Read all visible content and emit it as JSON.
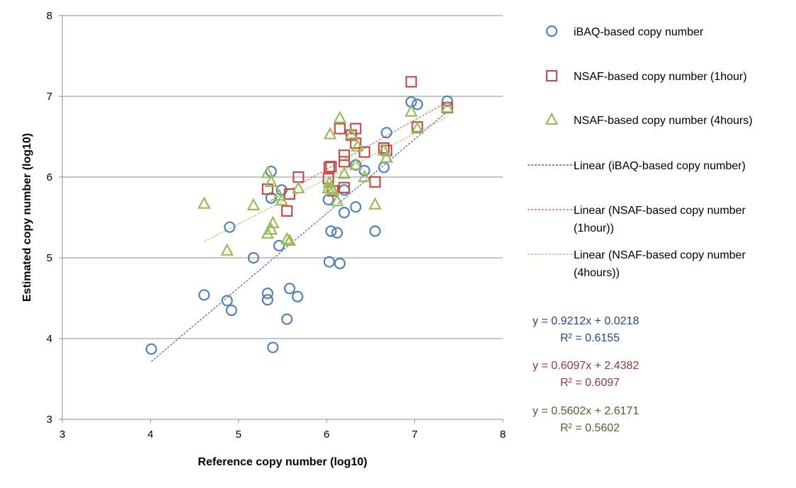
{
  "chart_data": {
    "type": "scatter",
    "xlabel": "Reference copy number (log10)",
    "ylabel": "Estimated copy number (log10)",
    "xlim": [
      3,
      8
    ],
    "ylim": [
      3,
      8
    ],
    "x_ticks": [
      3,
      4,
      5,
      6,
      7,
      8
    ],
    "y_ticks": [
      3,
      4,
      5,
      6,
      7,
      8
    ],
    "grid": "horizontal",
    "legend_position": "right",
    "series": [
      {
        "name": "iBAQ-based copy number",
        "marker": "circle",
        "color": "#4F81BD",
        "points": [
          [
            4.01,
            3.87
          ],
          [
            4.61,
            4.54
          ],
          [
            4.87,
            4.47
          ],
          [
            4.9,
            5.38
          ],
          [
            4.92,
            4.35
          ],
          [
            5.17,
            5.0
          ],
          [
            5.33,
            4.56
          ],
          [
            5.33,
            4.48
          ],
          [
            5.37,
            6.07
          ],
          [
            5.37,
            5.74
          ],
          [
            5.39,
            3.89
          ],
          [
            5.46,
            5.15
          ],
          [
            5.49,
            5.84
          ],
          [
            5.55,
            4.24
          ],
          [
            5.58,
            4.62
          ],
          [
            5.67,
            4.52
          ],
          [
            6.02,
            5.72
          ],
          [
            6.03,
            4.95
          ],
          [
            6.05,
            5.33
          ],
          [
            6.12,
            5.31
          ],
          [
            6.15,
            4.93
          ],
          [
            6.2,
            5.56
          ],
          [
            6.2,
            5.84
          ],
          [
            6.33,
            5.63
          ],
          [
            6.33,
            6.15
          ],
          [
            6.43,
            6.08
          ],
          [
            6.55,
            5.33
          ],
          [
            6.65,
            6.12
          ],
          [
            6.68,
            6.55
          ],
          [
            6.96,
            6.93
          ],
          [
            7.03,
            6.9
          ],
          [
            7.37,
            6.94
          ]
        ]
      },
      {
        "name": "NSAF-based copy number (1hour)",
        "marker": "square",
        "color": "#C0504D",
        "points": [
          [
            5.33,
            5.85
          ],
          [
            5.55,
            5.58
          ],
          [
            5.58,
            5.79
          ],
          [
            5.68,
            6.0
          ],
          [
            6.02,
            5.98
          ],
          [
            6.03,
            6.12
          ],
          [
            6.05,
            6.13
          ],
          [
            6.07,
            5.83
          ],
          [
            6.15,
            6.6
          ],
          [
            6.2,
            6.27
          ],
          [
            6.2,
            6.19
          ],
          [
            6.2,
            5.87
          ],
          [
            6.28,
            6.52
          ],
          [
            6.33,
            6.6
          ],
          [
            6.33,
            6.42
          ],
          [
            6.43,
            6.31
          ],
          [
            6.55,
            5.94
          ],
          [
            6.65,
            6.36
          ],
          [
            6.68,
            6.33
          ],
          [
            6.96,
            7.18
          ],
          [
            7.03,
            6.62
          ],
          [
            7.37,
            6.86
          ]
        ]
      },
      {
        "name": "NSAF-based copy number (4hours)",
        "marker": "triangle",
        "color": "#9BBB59",
        "points": [
          [
            4.61,
            5.67
          ],
          [
            4.87,
            5.09
          ],
          [
            5.17,
            5.65
          ],
          [
            5.33,
            5.3
          ],
          [
            5.33,
            6.05
          ],
          [
            5.37,
            5.94
          ],
          [
            5.37,
            5.35
          ],
          [
            5.39,
            5.43
          ],
          [
            5.46,
            5.77
          ],
          [
            5.49,
            5.71
          ],
          [
            5.55,
            5.23
          ],
          [
            5.58,
            5.21
          ],
          [
            5.68,
            5.86
          ],
          [
            6.02,
            5.86
          ],
          [
            6.03,
            5.93
          ],
          [
            6.04,
            6.53
          ],
          [
            6.05,
            5.86
          ],
          [
            6.07,
            5.84
          ],
          [
            6.12,
            5.7
          ],
          [
            6.15,
            6.73
          ],
          [
            6.2,
            6.04
          ],
          [
            6.28,
            6.53
          ],
          [
            6.33,
            6.15
          ],
          [
            6.35,
            6.38
          ],
          [
            6.43,
            6.0
          ],
          [
            6.55,
            5.66
          ],
          [
            6.65,
            6.33
          ],
          [
            6.68,
            6.24
          ],
          [
            6.96,
            6.81
          ],
          [
            7.03,
            6.6
          ],
          [
            7.37,
            6.86
          ]
        ]
      },
      {
        "name": "Linear (iBAQ-based copy number)",
        "marker": "dashed-line",
        "color": "#1F4E8C",
        "trend": {
          "slope": 0.9212,
          "intercept": 0.0218,
          "x_range": [
            4.01,
            7.37
          ]
        }
      },
      {
        "name": "Linear (NSAF-based copy number (1hour))",
        "marker": "dashed-line",
        "color": "#C0504D",
        "trend": {
          "slope": 0.6097,
          "intercept": 2.4382,
          "x_range": [
            5.33,
            7.37
          ]
        }
      },
      {
        "name": "Linear (NSAF-based copy number (4hours))",
        "marker": "dashed-line",
        "color": "#9BBB59",
        "trend": {
          "slope": 0.5602,
          "intercept": 2.6171,
          "x_range": [
            4.61,
            7.37
          ]
        }
      }
    ],
    "legend": [
      {
        "label": "iBAQ-based copy number",
        "lines": [
          "iBAQ-based copy number"
        ],
        "marker": "circle",
        "color": "#4F81BD"
      },
      {
        "label": "NSAF-based copy number (1hour)",
        "lines": [
          "NSAF-based copy number (1hour)"
        ],
        "marker": "square",
        "color": "#C0504D"
      },
      {
        "label": "NSAF-based copy number (4hours)",
        "lines": [
          "NSAF-based copy number (4hours)"
        ],
        "marker": "triangle",
        "color": "#9BBB59"
      },
      {
        "label": "Linear (iBAQ-based copy number)",
        "lines": [
          "Linear (iBAQ-based copy number)"
        ],
        "marker": "dashed-line",
        "color": "#1F4E8C"
      },
      {
        "label": "Linear (NSAF-based copy number (1hour))",
        "lines": [
          "Linear (NSAF-based copy number",
          "(1hour))"
        ],
        "marker": "dashed-line",
        "color": "#C0504D"
      },
      {
        "label": "Linear (NSAF-based copy number (4hours))",
        "lines": [
          "Linear (NSAF-based copy number",
          "(4hours))"
        ],
        "marker": "dashed-line",
        "color": "#9BBB59"
      }
    ],
    "annotations": [
      {
        "equation": "y = 0.9212x + 0.0218",
        "r2": "R² = 0.6155",
        "color": "#1F497D"
      },
      {
        "equation": "y = 0.6097x + 2.4382",
        "r2": "R² = 0.6097",
        "color": "#953735"
      },
      {
        "equation": "y = 0.5602x + 2.6171",
        "r2": "R² = 0.5602",
        "color": "#4F6228"
      }
    ]
  }
}
